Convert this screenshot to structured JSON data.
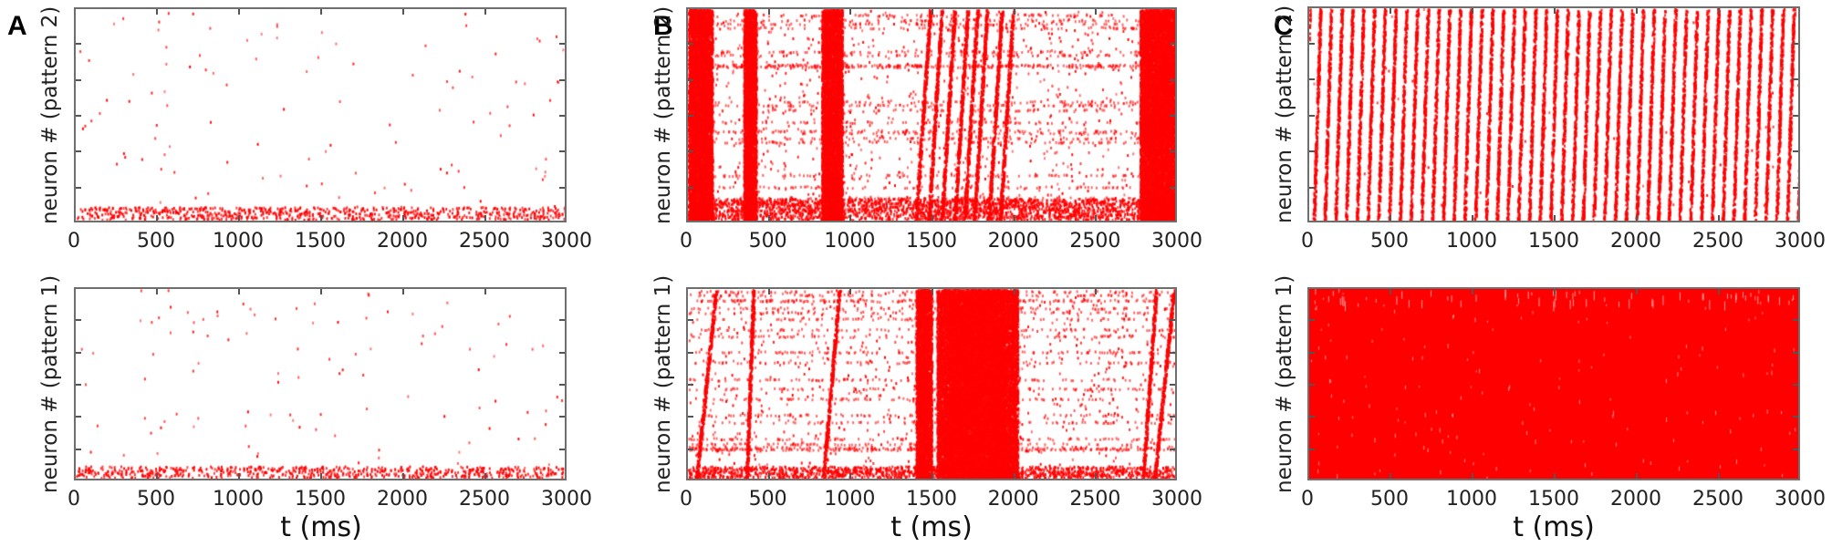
{
  "figure": {
    "panels": [
      {
        "letter": "A"
      },
      {
        "letter": "B"
      },
      {
        "letter": "C"
      }
    ],
    "common": {
      "xlabel": "t (ms)",
      "xticks": [
        "0",
        "500",
        "1000",
        "1500",
        "2000",
        "2500",
        "3000"
      ],
      "ylabel_top": "neuron # (pattern 2)",
      "ylabel_bottom": "neuron # (pattern 1)"
    },
    "colors": {
      "spike": "#ff0000",
      "axis": "#6e6e6e",
      "text": "#222222"
    }
  },
  "chart_data": [
    {
      "panel": "A",
      "subplot": "top",
      "type": "scatter",
      "style": "raster",
      "title": "",
      "xlabel": "t (ms)",
      "ylabel": "neuron # (pattern 2)",
      "xlim": [
        0,
        3000
      ],
      "yticks_count": 7,
      "ytick_labels": [],
      "description": "Sparse random spiking; dense band of activity in the lowest neurons",
      "random_density": 0.55,
      "base_band": {
        "height_frac": 0.06,
        "density": 6.0
      },
      "bursts": [],
      "sweeps": [],
      "periodic": null,
      "fill": false
    },
    {
      "panel": "A",
      "subplot": "bottom",
      "type": "scatter",
      "style": "raster",
      "title": "",
      "xlabel": "t (ms)",
      "ylabel": "neuron # (pattern 1)",
      "xlim": [
        0,
        3000
      ],
      "yticks_count": 7,
      "ytick_labels": [],
      "description": "Sparse random spiking; dense band of activity in the lowest neurons",
      "random_density": 0.6,
      "base_band": {
        "height_frac": 0.06,
        "density": 6.0
      },
      "bursts": [],
      "sweeps": [],
      "periodic": null,
      "fill": false
    },
    {
      "panel": "B",
      "subplot": "top",
      "type": "scatter",
      "style": "raster",
      "title": "",
      "xlabel": "t (ms)",
      "ylabel": "neuron # (pattern 2)",
      "xlim": [
        0,
        3000
      ],
      "yticks_count": 7,
      "ytick_labels": [],
      "description": "Irregular activity with population bursts and sequential (diagonal) replays",
      "random_density": 4.5,
      "base_band": {
        "height_frac": 0.1,
        "density": 12.0
      },
      "bursts": [
        [
          0,
          150
        ],
        [
          340,
          420
        ],
        [
          820,
          950
        ],
        [
          2780,
          3000
        ]
      ],
      "sweeps": [
        [
          1400,
          1490
        ],
        [
          1480,
          1560
        ],
        [
          1560,
          1640
        ],
        [
          1640,
          1720
        ],
        [
          1700,
          1780
        ],
        [
          1760,
          1840
        ],
        [
          1850,
          1930
        ],
        [
          1920,
          2000
        ]
      ],
      "periodic": null,
      "fill": false
    },
    {
      "panel": "B",
      "subplot": "bottom",
      "type": "scatter",
      "style": "raster",
      "title": "",
      "xlabel": "t (ms)",
      "ylabel": "neuron # (pattern 1)",
      "xlim": [
        0,
        3000
      ],
      "yticks_count": 7,
      "ytick_labels": [],
      "description": "Irregular activity with sequential replays and a sustained burst 1400-2030 ms",
      "random_density": 3.8,
      "base_band": {
        "height_frac": 0.06,
        "density": 12.0
      },
      "bursts": [
        [
          1400,
          1500
        ],
        [
          1530,
          2030
        ]
      ],
      "sweeps": [
        [
          50,
          170
        ],
        [
          360,
          400
        ],
        [
          830,
          930
        ],
        [
          2800,
          2880
        ],
        [
          2870,
          2990
        ]
      ],
      "periodic": null,
      "fill": false
    },
    {
      "panel": "C",
      "subplot": "top",
      "type": "scatter",
      "style": "raster",
      "title": "",
      "xlabel": "t (ms)",
      "ylabel": "neuron # (pattern 2)",
      "xlim": [
        0,
        3000
      ],
      "yticks_count": 7,
      "ytick_labels": [],
      "description": "Periodic traveling sequential activity (diagonal stripes)",
      "random_density": 0.3,
      "base_band": null,
      "bursts": [],
      "sweeps": [],
      "periodic": {
        "period_ms": 66,
        "slope_ms": 40
      },
      "fill": false
    },
    {
      "panel": "C",
      "subplot": "bottom",
      "type": "scatter",
      "style": "raster",
      "title": "",
      "xlabel": "t (ms)",
      "ylabel": "neuron # (pattern 1)",
      "xlim": [
        0,
        3000
      ],
      "yticks_count": 7,
      "ytick_labels": [],
      "description": "Saturated firing: all neurons active continuously",
      "random_density": 0,
      "base_band": null,
      "bursts": [],
      "sweeps": [],
      "periodic": null,
      "fill": true
    }
  ]
}
